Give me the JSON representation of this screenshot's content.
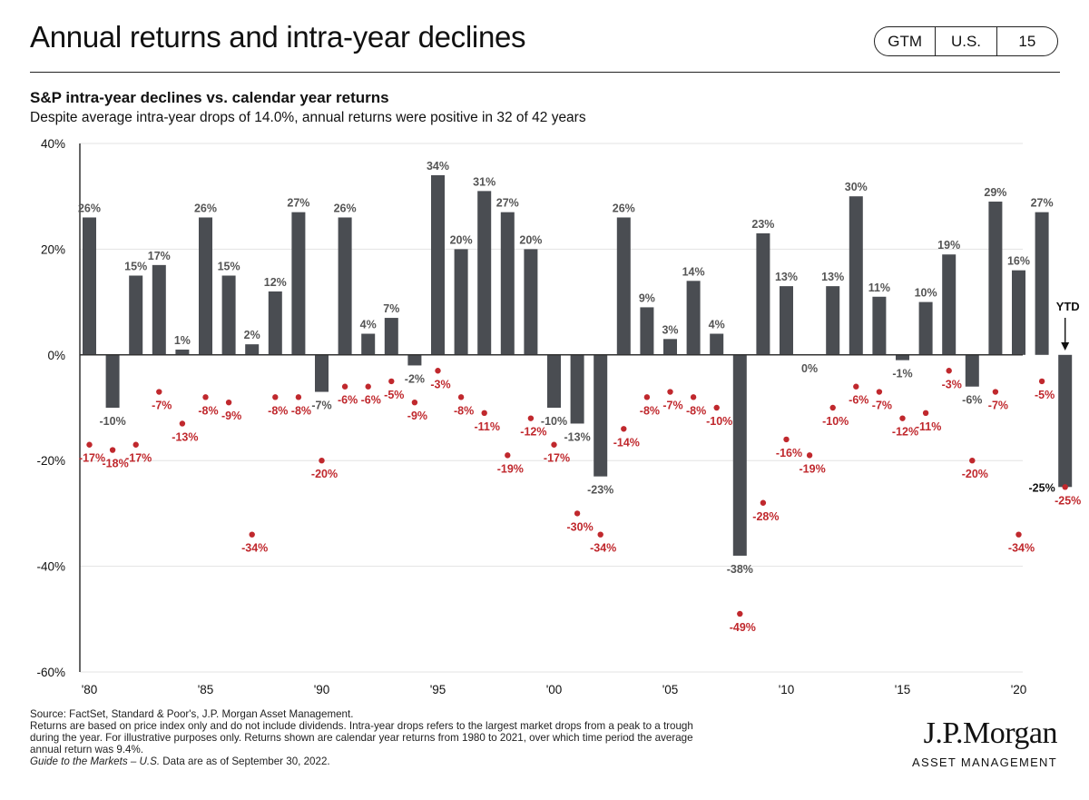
{
  "header": {
    "title": "Annual returns and intra-year declines",
    "badge": [
      "GTM",
      "U.S.",
      "15"
    ]
  },
  "chart_data": {
    "type": "bar",
    "title": "S&P intra-year declines vs. calendar year returns",
    "subtitle": "Despite average intra-year drops of 14.0%, annual returns were positive in 32 of 42 years",
    "x": [
      1980,
      1981,
      1982,
      1983,
      1984,
      1985,
      1986,
      1987,
      1988,
      1989,
      1990,
      1991,
      1992,
      1993,
      1994,
      1995,
      1996,
      1997,
      1998,
      1999,
      2000,
      2001,
      2002,
      2003,
      2004,
      2005,
      2006,
      2007,
      2008,
      2009,
      2010,
      2011,
      2012,
      2013,
      2014,
      2015,
      2016,
      2017,
      2018,
      2019,
      2020,
      2021,
      2022
    ],
    "x_tick_labels": [
      "'80",
      "'85",
      "'90",
      "'95",
      "'00",
      "'05",
      "'10",
      "'15",
      "'20"
    ],
    "x_tick_years": [
      1980,
      1985,
      1990,
      1995,
      2000,
      2005,
      2010,
      2015,
      2020
    ],
    "series": [
      {
        "values": [
          26,
          -10,
          15,
          17,
          1,
          26,
          15,
          2,
          12,
          27,
          -7,
          26,
          4,
          7,
          -2,
          34,
          20,
          31,
          27,
          20,
          -10,
          -13,
          -23,
          26,
          9,
          3,
          14,
          4,
          -38,
          23,
          13,
          0,
          13,
          30,
          11,
          -1,
          10,
          19,
          -6,
          29,
          16,
          27,
          -25
        ],
        "color": "#4a4d52"
      },
      {
        "values": [
          -17,
          -18,
          -17,
          -7,
          -13,
          -8,
          -9,
          -34,
          -8,
          -8,
          -20,
          -6,
          -6,
          -5,
          -9,
          -3,
          -8,
          -11,
          -19,
          -12,
          -17,
          -30,
          -34,
          -14,
          -8,
          -7,
          -8,
          -10,
          -49,
          -28,
          -16,
          -19,
          -10,
          -6,
          -7,
          -12,
          -11,
          -3,
          -20,
          -7,
          -34,
          -5,
          -25
        ],
        "color": "#c0282d"
      }
    ],
    "ylim": [
      -60,
      40
    ],
    "y_ticks": [
      -60,
      -40,
      -20,
      0,
      20,
      40
    ],
    "y_tick_labels": [
      "-60%",
      "-40%",
      "-20%",
      "0%",
      "20%",
      "40%"
    ],
    "grid": true,
    "annotation": {
      "text": "YTD",
      "year": 2022
    }
  },
  "footer": {
    "source": "Source: FactSet, Standard & Poor's, J.P. Morgan Asset Management.",
    "note_line1": "Returns are based on price index only and do not include dividends. Intra-year drops refers to the largest market drops from a peak to a trough",
    "note_line2": "during the year. For illustrative purposes only. Returns shown are calendar year returns from 1980 to 2021, over which time period the average",
    "note_line3": "annual return was 9.4%.",
    "guide_italic": "Guide to the Markets – U.S.",
    "guide_rest": " Data are as of September 30, 2022."
  },
  "logo": {
    "name": "J.P.Morgan",
    "sub": "ASSET MANAGEMENT"
  }
}
